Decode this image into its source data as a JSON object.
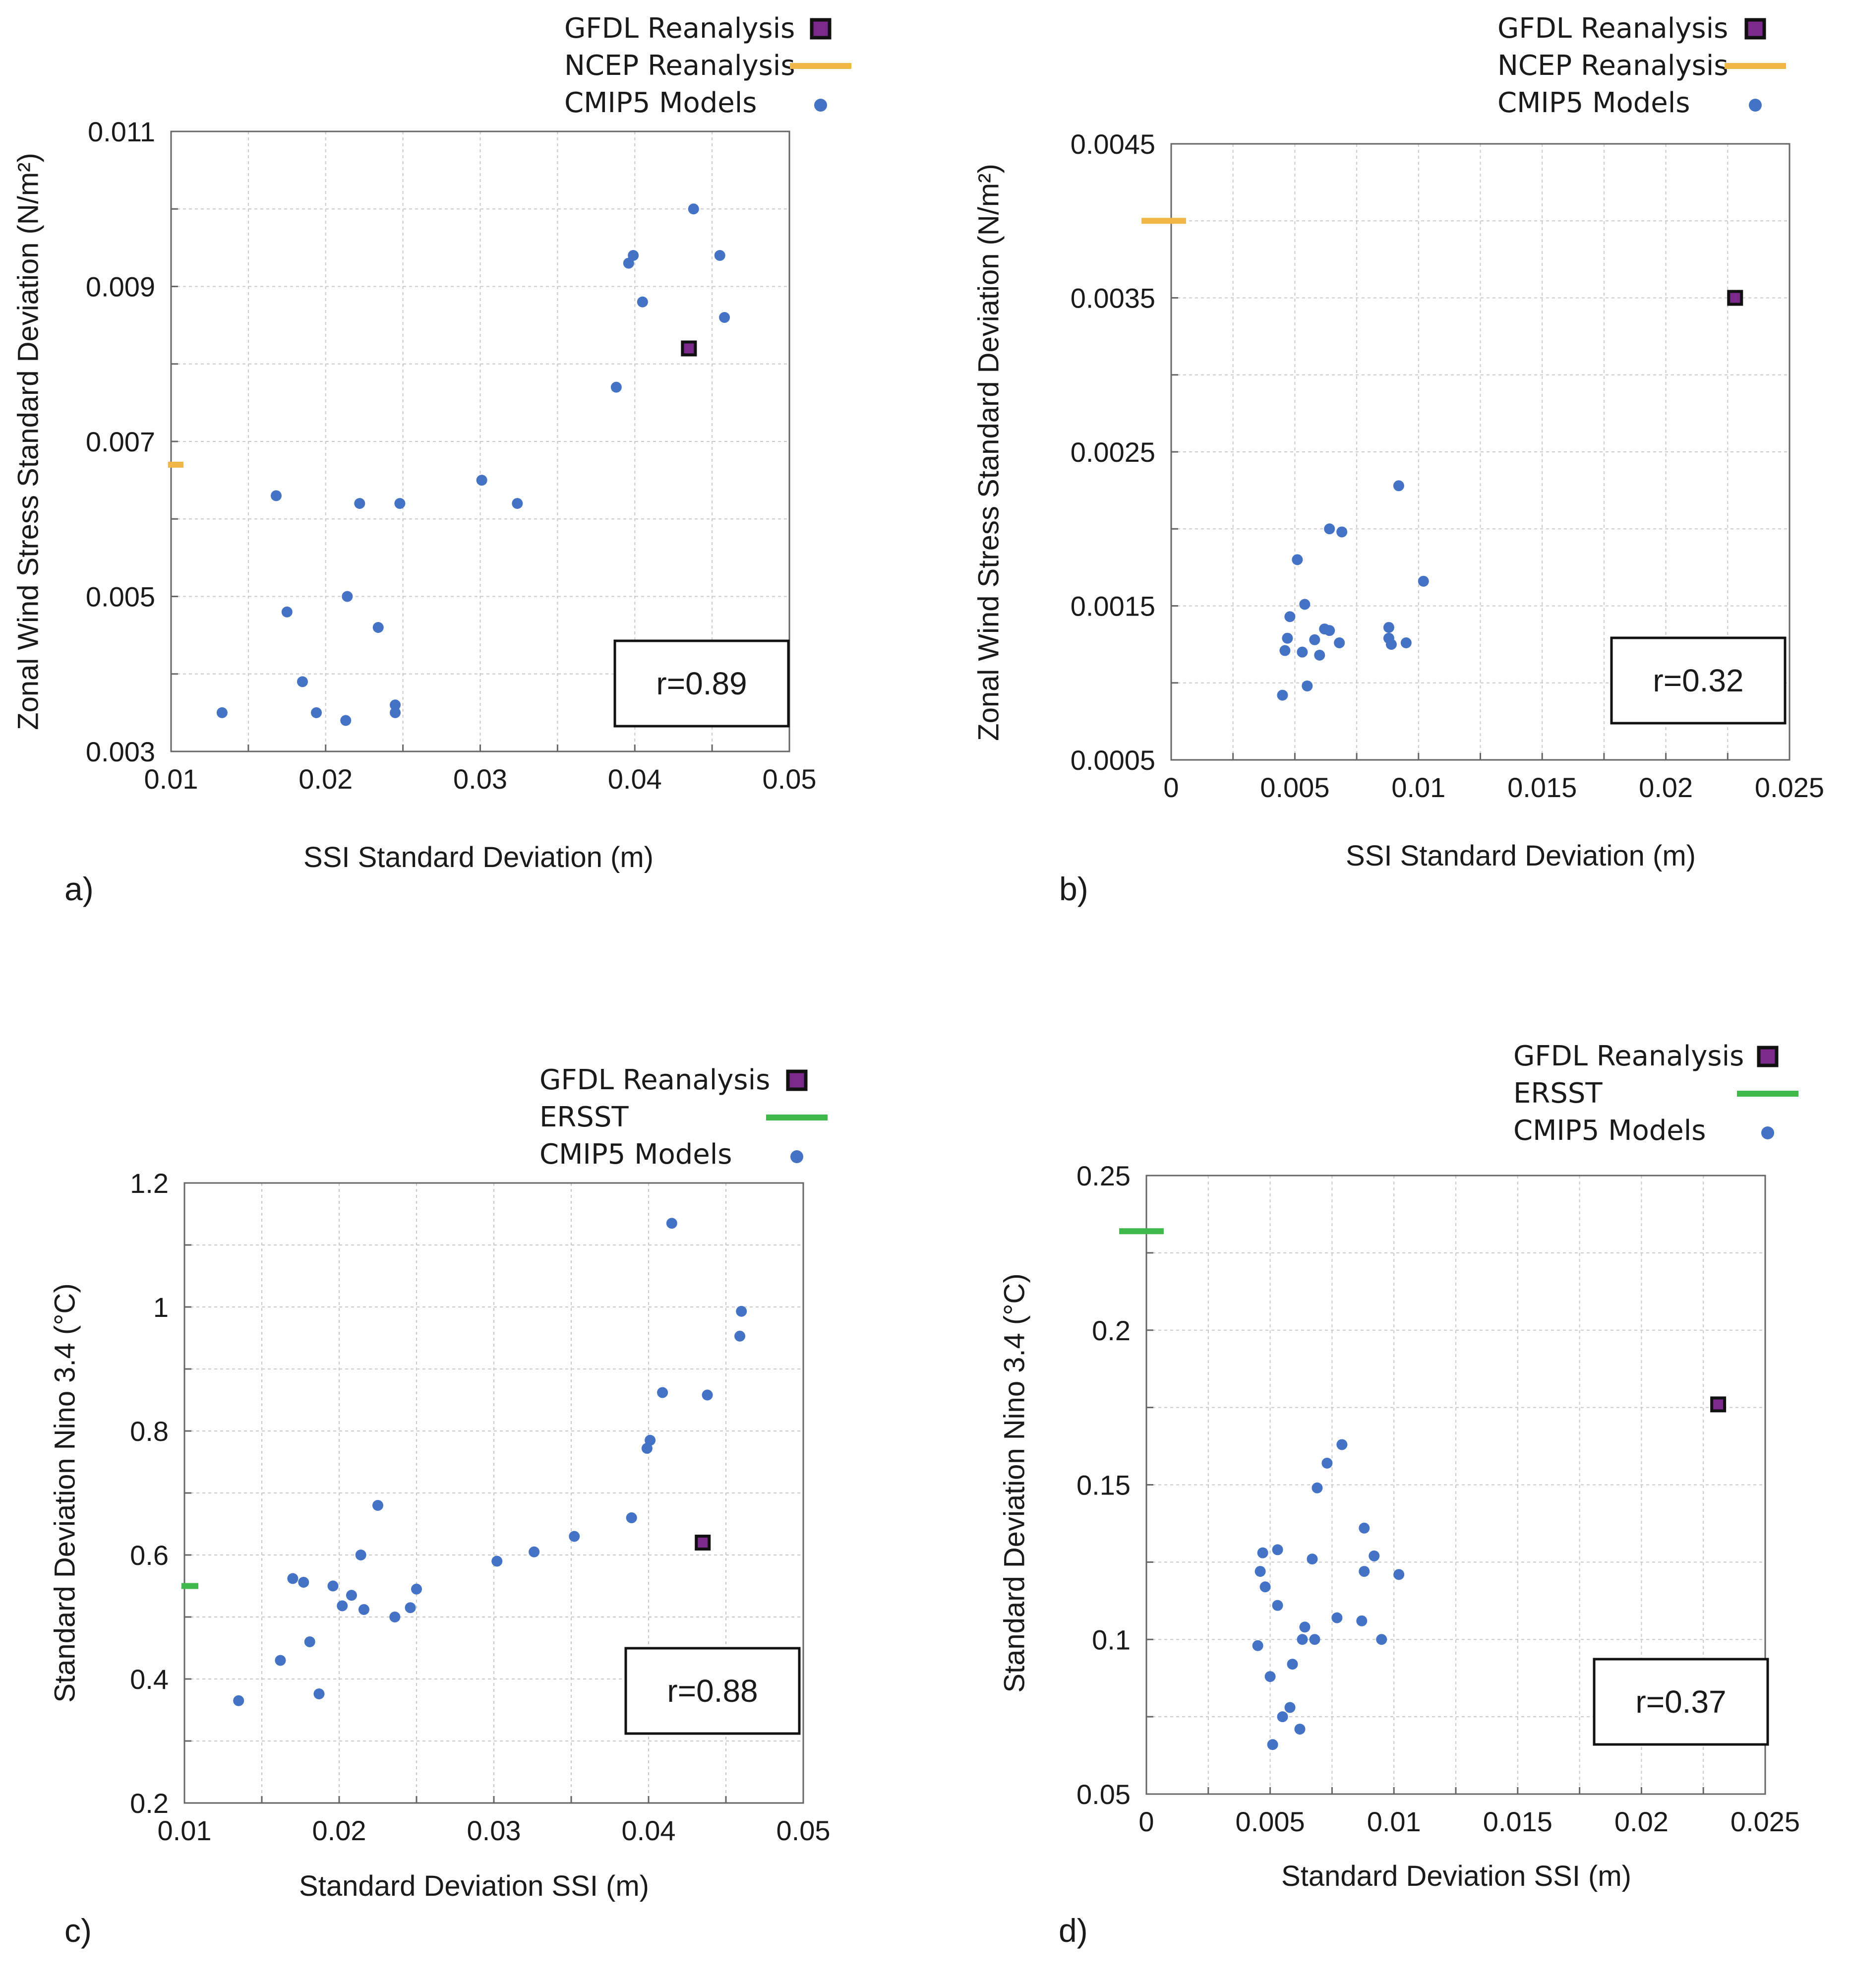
{
  "colors": {
    "model_point": "#4472c4",
    "gfdl_fill": "#7b2a8c",
    "ncep_line": "#f0b747",
    "ersst_line": "#3dba4a",
    "grid": "#c8c8c8",
    "axis": "#666666"
  },
  "chart_data": [
    {
      "id": "a",
      "type": "scatter",
      "panel_label": "a)",
      "title": "",
      "xlabel": "SSI Standard Deviation (m)",
      "ylabel": "Zonal Wind Stress Standard Deviation (N/m²)",
      "xlim": [
        0.01,
        0.05
      ],
      "ylim": [
        0.003,
        0.011
      ],
      "xticks": [
        0.01,
        0.02,
        0.03,
        0.04,
        0.05
      ],
      "xtick_labels": [
        "0.01",
        "0.02",
        "0.03",
        "0.04",
        "0.05"
      ],
      "yticks": [
        0.003,
        0.005,
        0.007,
        0.009,
        0.011
      ],
      "ytick_labels": [
        "0.003",
        "0.005",
        "0.007",
        "0.009",
        "0.011"
      ],
      "grid": true,
      "legend_position": "top-right",
      "legend": [
        {
          "label": "GFDL Reanalysis",
          "marker": "square"
        },
        {
          "label": "NCEP Reanalysis",
          "marker": "line"
        },
        {
          "label": "CMIP5 Models",
          "marker": "dot"
        }
      ],
      "reference_line": {
        "series": "NCEP Reanalysis",
        "y": 0.0067,
        "x_span": [
          0.0098,
          0.0108
        ]
      },
      "gfdl": {
        "x": 0.0435,
        "y": 0.0082
      },
      "models": [
        {
          "x": 0.0133,
          "y": 0.0035
        },
        {
          "x": 0.0168,
          "y": 0.0063
        },
        {
          "x": 0.0175,
          "y": 0.0048
        },
        {
          "x": 0.0185,
          "y": 0.0039
        },
        {
          "x": 0.0194,
          "y": 0.0035
        },
        {
          "x": 0.0213,
          "y": 0.0034
        },
        {
          "x": 0.0214,
          "y": 0.005
        },
        {
          "x": 0.0222,
          "y": 0.0062
        },
        {
          "x": 0.0234,
          "y": 0.0046
        },
        {
          "x": 0.0245,
          "y": 0.0036
        },
        {
          "x": 0.0245,
          "y": 0.0035
        },
        {
          "x": 0.0248,
          "y": 0.0062
        },
        {
          "x": 0.0301,
          "y": 0.0065
        },
        {
          "x": 0.0324,
          "y": 0.0062
        },
        {
          "x": 0.0388,
          "y": 0.0077
        },
        {
          "x": 0.0396,
          "y": 0.0093
        },
        {
          "x": 0.0399,
          "y": 0.0094
        },
        {
          "x": 0.0405,
          "y": 0.0088
        },
        {
          "x": 0.0438,
          "y": 0.01
        },
        {
          "x": 0.0455,
          "y": 0.0094
        },
        {
          "x": 0.0458,
          "y": 0.0086
        }
      ],
      "annotation": "r=0.89"
    },
    {
      "id": "b",
      "type": "scatter",
      "panel_label": "b)",
      "title": "",
      "xlabel": "SSI Standard Deviation (m)",
      "ylabel": "Zonal Wind Stress Standard Deviation (N/m²)",
      "xlim": [
        0,
        0.025
      ],
      "ylim": [
        0.0005,
        0.0045
      ],
      "xticks": [
        0,
        0.005,
        0.01,
        0.015,
        0.02,
        0.025
      ],
      "xtick_labels": [
        "0",
        "0.005",
        "0.01",
        "0.015",
        "0.02",
        "0.025"
      ],
      "yticks": [
        0.0005,
        0.0015,
        0.0025,
        0.0035,
        0.0045
      ],
      "ytick_labels": [
        "0.0005",
        "0.0015",
        "0.0025",
        "0.0035",
        "0.0045"
      ],
      "grid": true,
      "legend_position": "top-right",
      "legend": [
        {
          "label": "GFDL Reanalysis",
          "marker": "square"
        },
        {
          "label": "NCEP Reanalysis",
          "marker": "line"
        },
        {
          "label": "CMIP5 Models",
          "marker": "dot"
        }
      ],
      "reference_line": {
        "series": "NCEP Reanalysis",
        "y": 0.004,
        "x_span": [
          -0.0012,
          0.0006
        ]
      },
      "gfdl": {
        "x": 0.0228,
        "y": 0.0035
      },
      "models": [
        {
          "x": 0.0045,
          "y": 0.00092
        },
        {
          "x": 0.0046,
          "y": 0.00121
        },
        {
          "x": 0.0047,
          "y": 0.00129
        },
        {
          "x": 0.0048,
          "y": 0.00143
        },
        {
          "x": 0.0051,
          "y": 0.0018
        },
        {
          "x": 0.0053,
          "y": 0.0012
        },
        {
          "x": 0.0054,
          "y": 0.00151
        },
        {
          "x": 0.0055,
          "y": 0.00098
        },
        {
          "x": 0.0058,
          "y": 0.00128
        },
        {
          "x": 0.006,
          "y": 0.00118
        },
        {
          "x": 0.0062,
          "y": 0.00135
        },
        {
          "x": 0.0064,
          "y": 0.00134
        },
        {
          "x": 0.0064,
          "y": 0.002
        },
        {
          "x": 0.0068,
          "y": 0.00126
        },
        {
          "x": 0.0069,
          "y": 0.00198
        },
        {
          "x": 0.0088,
          "y": 0.00136
        },
        {
          "x": 0.0088,
          "y": 0.00129
        },
        {
          "x": 0.0089,
          "y": 0.00125
        },
        {
          "x": 0.0092,
          "y": 0.00228
        },
        {
          "x": 0.0095,
          "y": 0.00126
        },
        {
          "x": 0.0102,
          "y": 0.00166
        }
      ],
      "annotation": "r=0.32"
    },
    {
      "id": "c",
      "type": "scatter",
      "panel_label": "c)",
      "title": "",
      "xlabel": "Standard Deviation SSI (m)",
      "ylabel": "Standard Deviation Nino 3.4 (°C)",
      "xlim": [
        0.01,
        0.05
      ],
      "ylim": [
        0.2,
        1.2
      ],
      "xticks": [
        0.01,
        0.02,
        0.03,
        0.04,
        0.05
      ],
      "xtick_labels": [
        "0.01",
        "0.02",
        "0.03",
        "0.04",
        "0.05"
      ],
      "yticks": [
        0.2,
        0.4,
        0.6,
        0.8,
        1.0,
        1.2
      ],
      "ytick_labels": [
        "0.2",
        "0.4",
        "0.6",
        "0.8",
        "1",
        "1.2"
      ],
      "grid": true,
      "legend_position": "top-right",
      "legend": [
        {
          "label": "GFDL Reanalysis",
          "marker": "square"
        },
        {
          "label": "ERSST",
          "marker": "line"
        },
        {
          "label": "CMIP5 Models",
          "marker": "dot"
        }
      ],
      "reference_line": {
        "series": "ERSST",
        "y": 0.55,
        "x_span": [
          0.0098,
          0.0109
        ]
      },
      "gfdl": {
        "x": 0.0435,
        "y": 0.62
      },
      "models": [
        {
          "x": 0.0135,
          "y": 0.365
        },
        {
          "x": 0.0162,
          "y": 0.43
        },
        {
          "x": 0.017,
          "y": 0.562
        },
        {
          "x": 0.0177,
          "y": 0.556
        },
        {
          "x": 0.0181,
          "y": 0.46
        },
        {
          "x": 0.0187,
          "y": 0.376
        },
        {
          "x": 0.0196,
          "y": 0.55
        },
        {
          "x": 0.0202,
          "y": 0.518
        },
        {
          "x": 0.0208,
          "y": 0.535
        },
        {
          "x": 0.0214,
          "y": 0.6
        },
        {
          "x": 0.0216,
          "y": 0.512
        },
        {
          "x": 0.0225,
          "y": 0.68
        },
        {
          "x": 0.0236,
          "y": 0.5
        },
        {
          "x": 0.0246,
          "y": 0.515
        },
        {
          "x": 0.025,
          "y": 0.545
        },
        {
          "x": 0.0302,
          "y": 0.59
        },
        {
          "x": 0.0326,
          "y": 0.605
        },
        {
          "x": 0.0352,
          "y": 0.63
        },
        {
          "x": 0.0389,
          "y": 0.66
        },
        {
          "x": 0.0399,
          "y": 0.772
        },
        {
          "x": 0.0401,
          "y": 0.785
        },
        {
          "x": 0.0409,
          "y": 0.862
        },
        {
          "x": 0.0415,
          "y": 1.135
        },
        {
          "x": 0.0438,
          "y": 0.858
        },
        {
          "x": 0.0459,
          "y": 0.953
        },
        {
          "x": 0.046,
          "y": 0.993
        }
      ],
      "annotation": "r=0.88"
    },
    {
      "id": "d",
      "type": "scatter",
      "panel_label": "d)",
      "title": "",
      "xlabel": "Standard Deviation SSI (m)",
      "ylabel": "Standard Deviation Nino 3.4 (°C)",
      "xlim": [
        0,
        0.025
      ],
      "ylim": [
        0.05,
        0.25
      ],
      "xticks": [
        0,
        0.005,
        0.01,
        0.015,
        0.02,
        0.025
      ],
      "xtick_labels": [
        "0",
        "0.005",
        "0.01",
        "0.015",
        "0.02",
        "0.025"
      ],
      "yticks": [
        0.05,
        0.1,
        0.15,
        0.2,
        0.25
      ],
      "ytick_labels": [
        "0.05",
        "0.1",
        "0.15",
        "0.2",
        "0.25"
      ],
      "grid": true,
      "legend_position": "top-right",
      "legend": [
        {
          "label": "GFDL Reanalysis",
          "marker": "square"
        },
        {
          "label": "ERSST",
          "marker": "line"
        },
        {
          "label": "CMIP5 Models",
          "marker": "dot"
        }
      ],
      "reference_line": {
        "series": "ERSST",
        "y": 0.232,
        "x_span": [
          -0.0011,
          0.0007
        ]
      },
      "gfdl": {
        "x": 0.0231,
        "y": 0.176
      },
      "models": [
        {
          "x": 0.0045,
          "y": 0.098
        },
        {
          "x": 0.0046,
          "y": 0.122
        },
        {
          "x": 0.0047,
          "y": 0.128
        },
        {
          "x": 0.0048,
          "y": 0.117
        },
        {
          "x": 0.005,
          "y": 0.088
        },
        {
          "x": 0.0051,
          "y": 0.066
        },
        {
          "x": 0.0053,
          "y": 0.111
        },
        {
          "x": 0.0053,
          "y": 0.129
        },
        {
          "x": 0.0055,
          "y": 0.075
        },
        {
          "x": 0.0058,
          "y": 0.078
        },
        {
          "x": 0.0059,
          "y": 0.092
        },
        {
          "x": 0.0062,
          "y": 0.071
        },
        {
          "x": 0.0063,
          "y": 0.1
        },
        {
          "x": 0.0064,
          "y": 0.104
        },
        {
          "x": 0.0067,
          "y": 0.126
        },
        {
          "x": 0.0068,
          "y": 0.1
        },
        {
          "x": 0.0069,
          "y": 0.149
        },
        {
          "x": 0.0073,
          "y": 0.157
        },
        {
          "x": 0.0077,
          "y": 0.107
        },
        {
          "x": 0.0079,
          "y": 0.163
        },
        {
          "x": 0.0087,
          "y": 0.106
        },
        {
          "x": 0.0088,
          "y": 0.122
        },
        {
          "x": 0.0088,
          "y": 0.136
        },
        {
          "x": 0.0092,
          "y": 0.127
        },
        {
          "x": 0.0095,
          "y": 0.1
        },
        {
          "x": 0.0102,
          "y": 0.121
        }
      ],
      "annotation": "r=0.37"
    }
  ]
}
